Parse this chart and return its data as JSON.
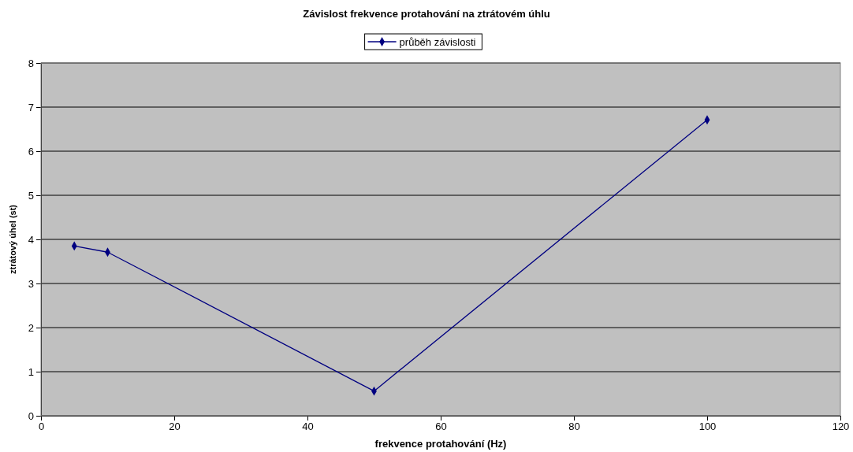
{
  "chart_data": {
    "type": "line",
    "title": "Závislost frekvence protahování na ztrátovém úhlu",
    "xlabel": "frekvence protahování (Hz)",
    "ylabel": "ztrátový úhel (st)",
    "x": [
      5,
      10,
      50,
      100
    ],
    "series": [
      {
        "name": "průběh závislosti",
        "color": "#000080",
        "values": [
          3.85,
          3.71,
          0.56,
          6.71
        ]
      }
    ],
    "xlim": [
      0,
      120
    ],
    "xticks": [
      0,
      20,
      40,
      60,
      80,
      100,
      120
    ],
    "ylim": [
      0,
      8
    ],
    "yticks": [
      0,
      1,
      2,
      3,
      4,
      5,
      6,
      7,
      8
    ],
    "grid": "y",
    "legend": "top",
    "marker": "diamond",
    "line_style": "solid"
  }
}
